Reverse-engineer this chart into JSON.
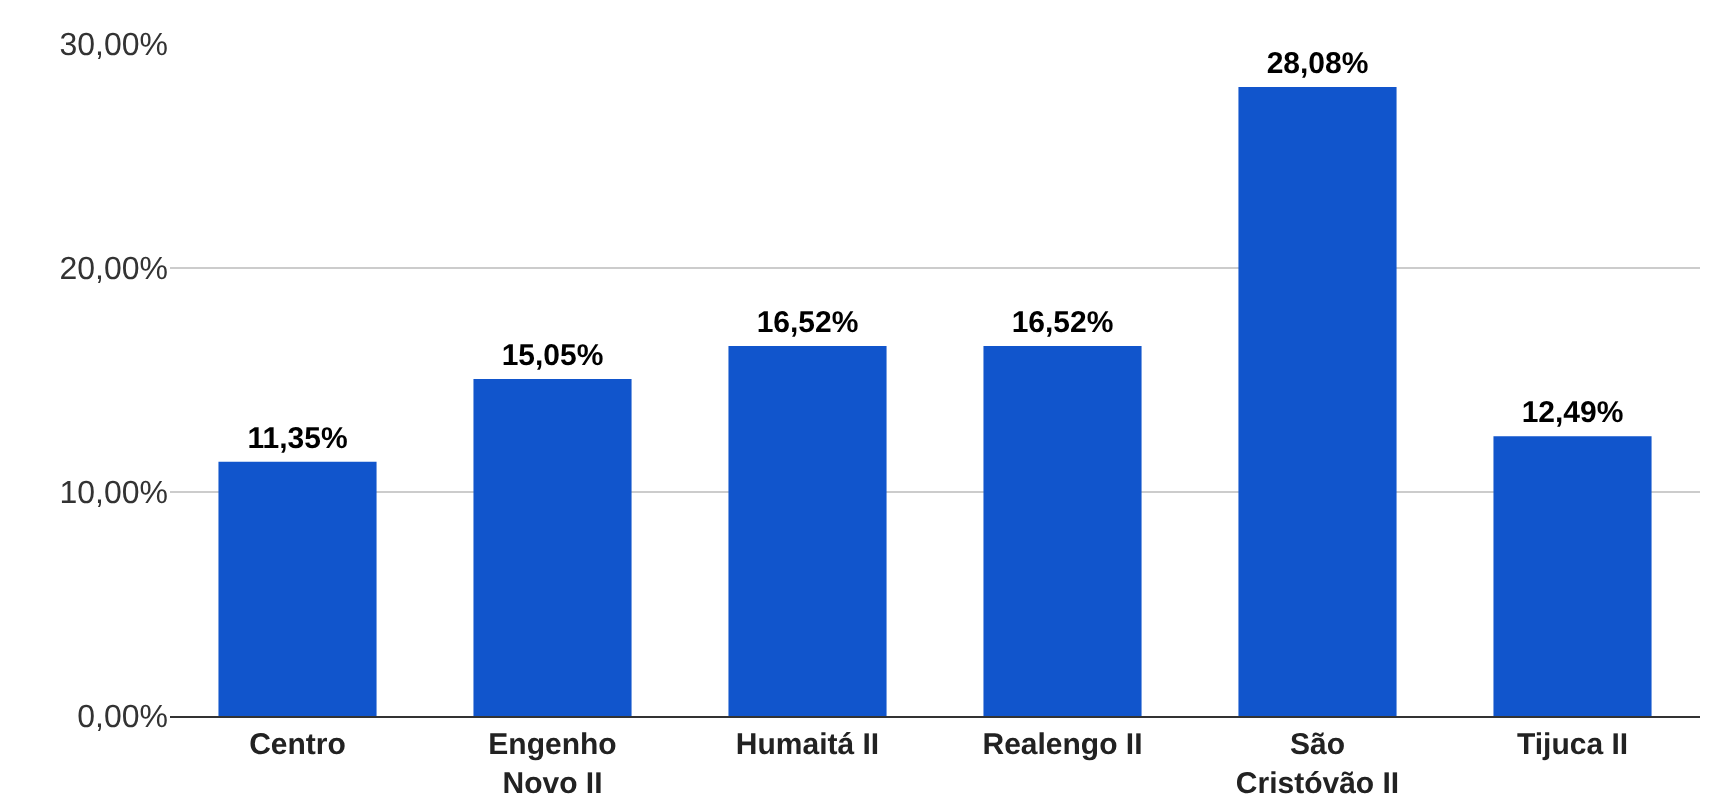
{
  "chart_data": {
    "type": "bar",
    "categories": [
      "Centro",
      "Engenho\nNovo II",
      "Humaitá II",
      "Realengo II",
      "São\nCristóvão II",
      "Tijuca II"
    ],
    "values": [
      11.35,
      15.05,
      16.52,
      16.52,
      28.08,
      12.49
    ],
    "value_labels": [
      "11,35%",
      "15,05%",
      "16,52%",
      "16,52%",
      "28,08%",
      "12,49%"
    ],
    "color": "#1155cc",
    "ylim": [
      0,
      30
    ],
    "yticks": [
      {
        "value": 0,
        "label": "0,00%"
      },
      {
        "value": 10,
        "label": "10,00%"
      },
      {
        "value": 20,
        "label": "20,00%"
      },
      {
        "value": 30,
        "label": "30,00%"
      }
    ],
    "grid": "y"
  }
}
